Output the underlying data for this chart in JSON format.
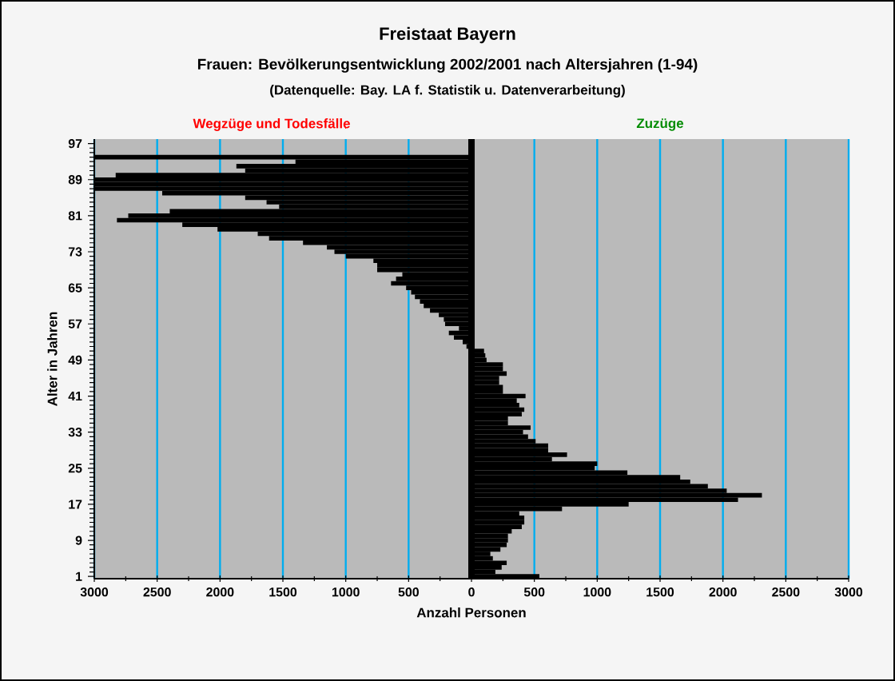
{
  "chart_data": {
    "type": "bar",
    "orientation": "horizontal",
    "title": "Freistaat Bayern",
    "subtitle": "Frauen: Bevölkerungsentwicklung 2002/2001 nach Altersjahren (1-94)",
    "xlabel": "Anzahl Personen",
    "ylabel": "Alter in Jahren",
    "annotations": [
      "(Datenquelle: Bay. LA f. Statistik u. Datenverarbeitung)",
      "Wegzüge und Todesfälle",
      "Zuzüge"
    ],
    "x": [
      1,
      2,
      3,
      4,
      5,
      6,
      7,
      8,
      9,
      10,
      11,
      12,
      13,
      14,
      15,
      16,
      17,
      18,
      19,
      20,
      21,
      22,
      23,
      24,
      25,
      26,
      27,
      28,
      29,
      30,
      31,
      32,
      33,
      34,
      35,
      36,
      37,
      38,
      39,
      40,
      41,
      42,
      43,
      44,
      45,
      46,
      47,
      48,
      49,
      50,
      51,
      52,
      53,
      54,
      55,
      56,
      57,
      58,
      59,
      60,
      61,
      62,
      63,
      64,
      65,
      66,
      67,
      68,
      69,
      70,
      71,
      72,
      73,
      74,
      75,
      76,
      77,
      78,
      79,
      80,
      81,
      82,
      83,
      84,
      85,
      86,
      87,
      88,
      89,
      90,
      91,
      92,
      93,
      94
    ],
    "values": [
      540,
      190,
      240,
      280,
      170,
      150,
      230,
      280,
      290,
      290,
      320,
      400,
      420,
      420,
      380,
      720,
      1250,
      2120,
      2310,
      2030,
      1880,
      1740,
      1660,
      1240,
      980,
      1000,
      640,
      760,
      610,
      610,
      510,
      450,
      410,
      470,
      290,
      290,
      400,
      420,
      380,
      360,
      430,
      250,
      250,
      220,
      220,
      280,
      250,
      250,
      120,
      110,
      100,
      -40,
      -70,
      -140,
      -180,
      -100,
      -210,
      -220,
      -260,
      -330,
      -380,
      -410,
      -450,
      -480,
      -520,
      -640,
      -600,
      -550,
      -750,
      -750,
      -780,
      -1000,
      -1090,
      -1150,
      -1340,
      -1610,
      -1700,
      -2020,
      -2300,
      -2820,
      -2730,
      -2400,
      -1530,
      -1630,
      -1800,
      -2460,
      -3000,
      -3000,
      -3000,
      -2830,
      -1800,
      -1870,
      -1400,
      -3000
    ],
    "color": "#000000",
    "xlim": [
      -3000,
      3000
    ],
    "xticks": [
      {
        "value": -3000,
        "label": "3000"
      },
      {
        "value": -2500,
        "label": "2500"
      },
      {
        "value": -2000,
        "label": "2000"
      },
      {
        "value": -1500,
        "label": "1500"
      },
      {
        "value": -1000,
        "label": "1000"
      },
      {
        "value": -500,
        "label": "500"
      },
      0,
      500,
      1000,
      1500,
      2000,
      2500,
      3000
    ],
    "ylim": [
      0.5,
      98
    ],
    "yticks": [
      1,
      9,
      17,
      25,
      33,
      41,
      49,
      57,
      65,
      73,
      81,
      89,
      97
    ],
    "grid": "x",
    "ref_lines": [
      {
        "axis": "x",
        "value": 0,
        "color": "#000000"
      }
    ]
  }
}
